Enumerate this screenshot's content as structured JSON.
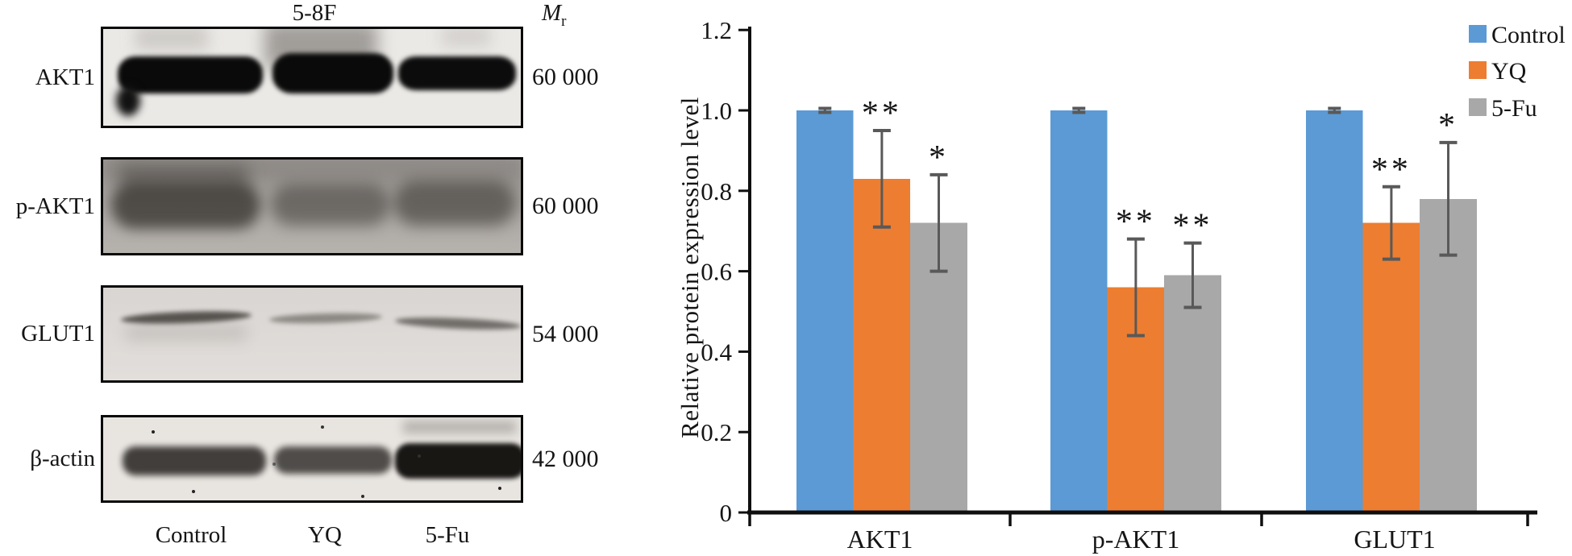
{
  "figure": {
    "blot_panel": {
      "cell_line_label": "5-8F",
      "mr_label": "M",
      "mr_sub": "r",
      "rows": [
        {
          "protein": "AKT1",
          "mr": "60 000"
        },
        {
          "protein": "p-AKT1",
          "mr": "60 000"
        },
        {
          "protein": "GLUT1",
          "mr": "54 000"
        },
        {
          "protein": "β-actin",
          "mr": "42 000"
        }
      ],
      "lanes": [
        "Control",
        "YQ",
        "5-Fu"
      ]
    }
  },
  "chart_data": {
    "type": "bar",
    "title": "",
    "categories": [
      "AKT1",
      "p-AKT1",
      "GLUT1"
    ],
    "series": [
      {
        "name": "Control",
        "color": "#5B9AD5",
        "values": [
          1.0,
          1.0,
          1.0
        ],
        "errors": [
          0.005,
          0.005,
          0.005
        ],
        "significance": [
          "",
          "",
          ""
        ]
      },
      {
        "name": "YQ",
        "color": "#ED7D31",
        "values": [
          0.83,
          0.56,
          0.72
        ],
        "errors": [
          0.12,
          0.12,
          0.09
        ],
        "significance": [
          "**",
          "**",
          "**"
        ]
      },
      {
        "name": "5-Fu",
        "color": "#A8A8A8",
        "values": [
          0.72,
          0.59,
          0.78
        ],
        "errors": [
          0.12,
          0.08,
          0.14
        ],
        "significance": [
          "*",
          "**",
          "*"
        ]
      }
    ],
    "ylabel": "Relative protein expression level",
    "xlabel": "",
    "ylim": [
      0,
      1.2
    ],
    "ytick_labels": [
      "0",
      "0.2",
      "0.4",
      "0.6",
      "0.8",
      "1.0",
      "1.2"
    ],
    "grid": false,
    "legend_position": "top-right",
    "error_bar_color": "#595959",
    "axis_color": "#0f0f0f"
  }
}
